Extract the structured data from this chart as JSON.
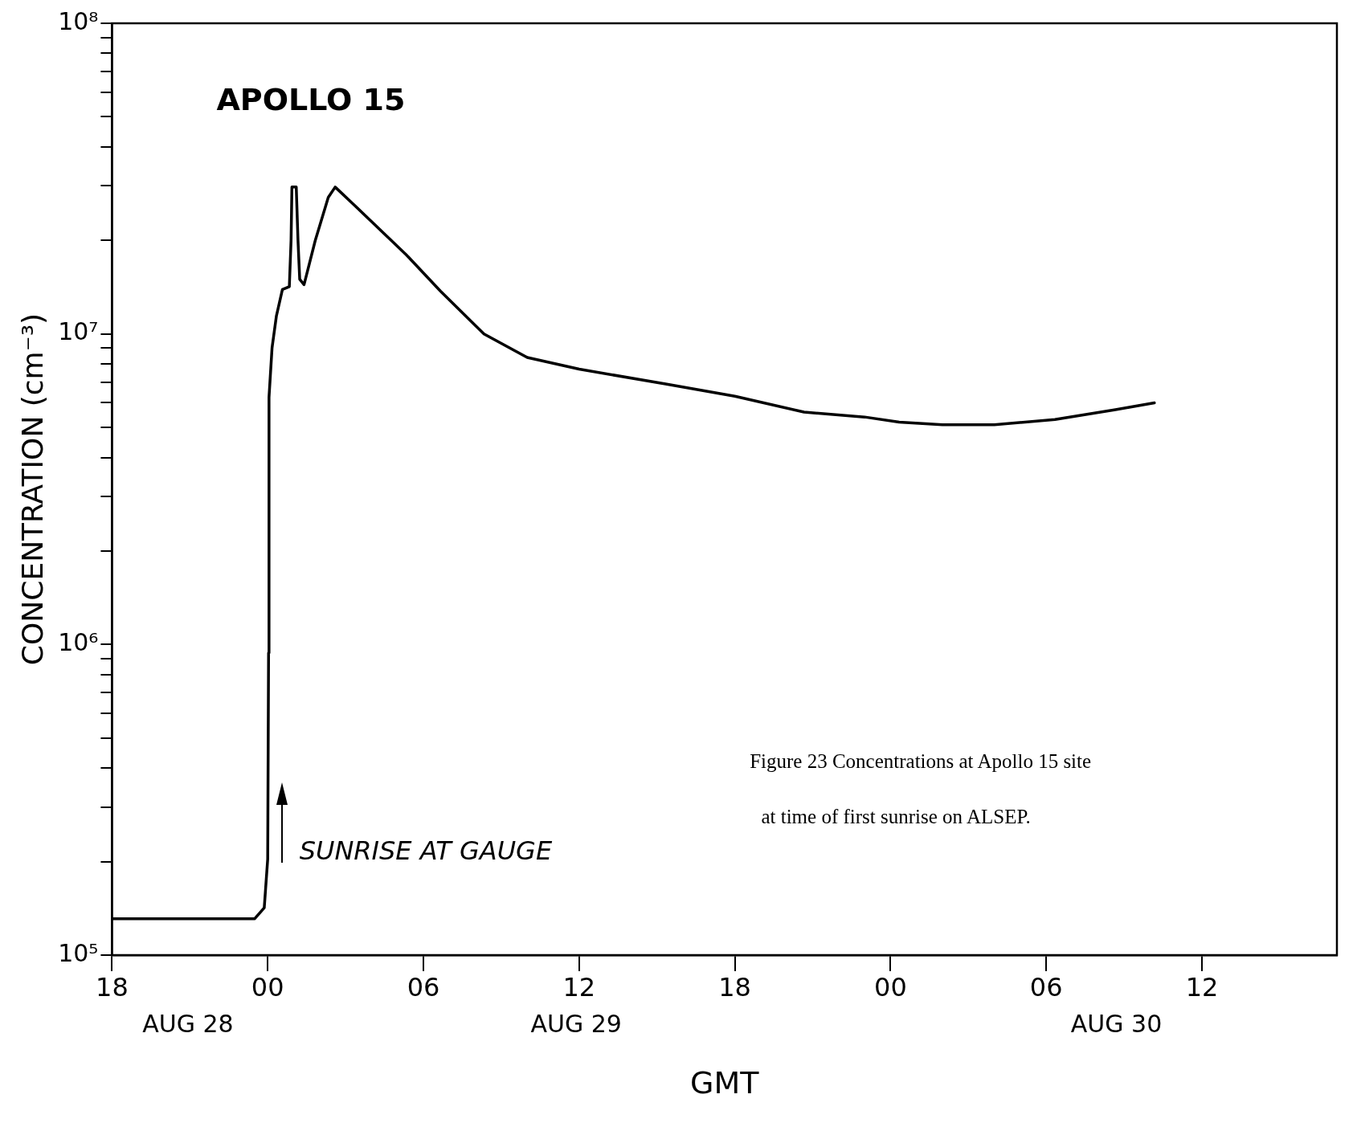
{
  "chart_data": {
    "type": "line",
    "title": "APOLLO 15",
    "xlabel": "GMT",
    "ylabel": "CONCENTRATION (cm⁻³)",
    "log": "y",
    "grid": false,
    "legend": false,
    "marker": "none",
    "line_style": "solid",
    "xlim": [
      "--08-28T18:00",
      "--08-30T17:12"
    ],
    "xticks": [
      {
        "value": "--08-28T18:00",
        "label": "18"
      },
      {
        "value": "--08-29T00:00",
        "label": "00"
      },
      {
        "value": "--08-29T06:00",
        "label": "06"
      },
      {
        "value": "--08-29T12:00",
        "label": "12"
      },
      {
        "value": "--08-29T18:00",
        "label": "18"
      },
      {
        "value": "--08-30T00:00",
        "label": "00"
      },
      {
        "value": "--08-30T06:00",
        "label": "06"
      },
      {
        "value": "--08-30T12:00",
        "label": "12"
      }
    ],
    "ylim": [
      100000,
      100000000
    ],
    "yticks": [
      {
        "value": 100000,
        "label": "10⁵"
      },
      {
        "value": 200000,
        "label": null
      },
      {
        "value": 300000,
        "label": null
      },
      {
        "value": 400000,
        "label": null
      },
      {
        "value": 500000,
        "label": null
      },
      {
        "value": 600000,
        "label": null
      },
      {
        "value": 700000,
        "label": null
      },
      {
        "value": 800000,
        "label": null
      },
      {
        "value": 900000,
        "label": null
      },
      {
        "value": 1000000,
        "label": "10⁶"
      },
      {
        "value": 2000000,
        "label": null
      },
      {
        "value": 3000000,
        "label": null
      },
      {
        "value": 4000000,
        "label": null
      },
      {
        "value": 5000000,
        "label": null
      },
      {
        "value": 6000000,
        "label": null
      },
      {
        "value": 7000000,
        "label": null
      },
      {
        "value": 8000000,
        "label": null
      },
      {
        "value": 9000000,
        "label": null
      },
      {
        "value": 10000000,
        "label": "10⁷"
      },
      {
        "value": 20000000,
        "label": null
      },
      {
        "value": 30000000,
        "label": null
      },
      {
        "value": 40000000,
        "label": null
      },
      {
        "value": 50000000,
        "label": null
      },
      {
        "value": 60000000,
        "label": null
      },
      {
        "value": 70000000,
        "label": null
      },
      {
        "value": 80000000,
        "label": null
      },
      {
        "value": 90000000,
        "label": null
      },
      {
        "value": 100000000,
        "label": "10⁸"
      }
    ],
    "series": [
      {
        "color": "#000000",
        "x": [
          "--08-28T18:00",
          "--08-28T23:30",
          "--08-28T23:52",
          "--08-29T00:00",
          "--08-29T00:02",
          "--08-29T00:03",
          "--08-29T00:10",
          "--08-29T00:20",
          "--08-29T00:34",
          "--08-29T00:50",
          "--08-29T00:54",
          "--08-29T00:56",
          "--08-29T01:06",
          "--08-29T01:10",
          "--08-29T01:14",
          "--08-29T01:24",
          "--08-29T01:50",
          "--08-29T02:20",
          "--08-29T02:36",
          "--08-29T03:20",
          "--08-29T05:20",
          "--08-29T06:40",
          "--08-29T08:20",
          "--08-29T10:00",
          "--08-29T12:00",
          "--08-29T15:20",
          "--08-29T18:00",
          "--08-29T20:40",
          "--08-29T23:00",
          "--08-30T00:20",
          "--08-30T02:00",
          "--08-30T04:00",
          "--08-30T06:20",
          "--08-30T08:40",
          "--08-30T10:10"
        ],
        "values": [
          131000,
          131000,
          142000,
          204000,
          940000,
          6250000,
          9000000,
          11400000,
          13900000,
          14200000,
          20000000,
          29700000,
          29700000,
          20000000,
          15000000,
          14400000,
          20000000,
          27500000,
          29700000,
          26000000,
          18000000,
          13700000,
          10000000,
          8400000,
          7700000,
          6900000,
          6300000,
          5600000,
          5400000,
          5200000,
          5100000,
          5100000,
          5300000,
          5700000,
          6000000
        ]
      }
    ],
    "annotations": [
      "SUNRISE AT GAUGE",
      "AUG 28",
      "AUG 29",
      "AUG 30",
      "Figure 23  Concentrations at Apollo 15 site",
      "at time of first sunrise on ALSEP."
    ]
  }
}
